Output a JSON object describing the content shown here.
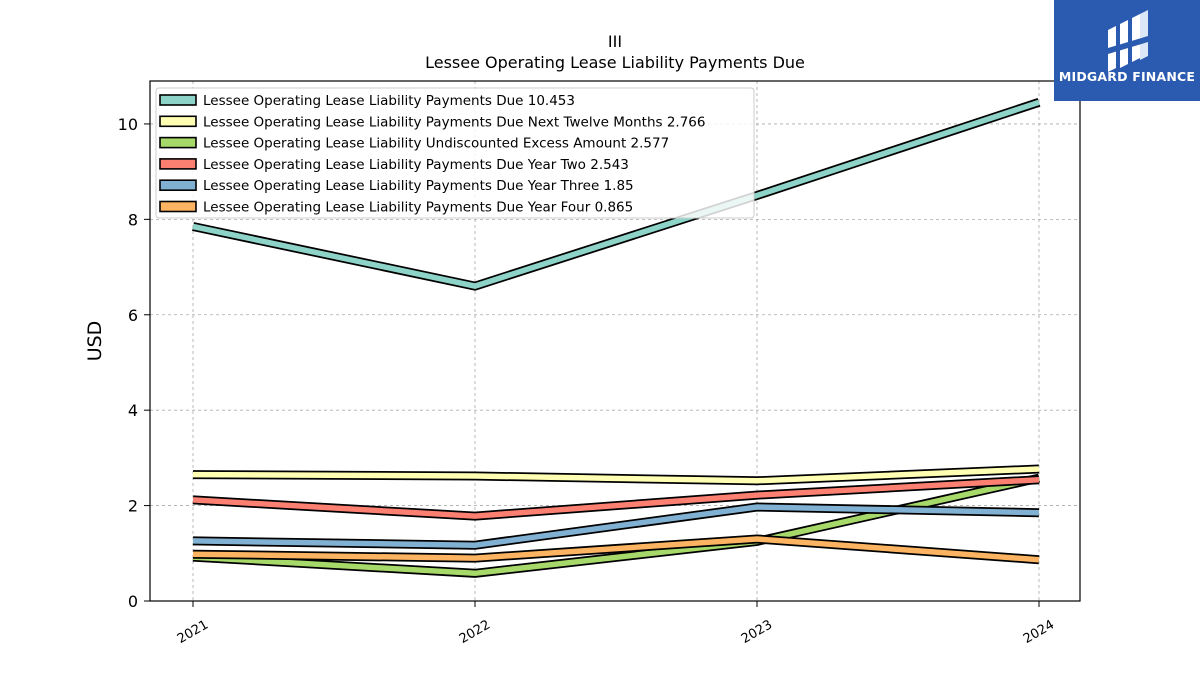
{
  "chart_data": {
    "type": "line",
    "title_line1": "III",
    "title": "Lessee Operating Lease Liability Payments Due",
    "ylabel": "USD",
    "xlabel": "",
    "categories": [
      "2021",
      "2022",
      "2023",
      "2024"
    ],
    "ylim": [
      0,
      10.9
    ],
    "yticks": [
      "0",
      "2",
      "4",
      "6",
      "8",
      "10"
    ],
    "grid": true,
    "legend_position": "top-left",
    "series": [
      {
        "name": "Lessee Operating Lease Liability Payments Due",
        "legend": "Lessee Operating Lease Liability Payments Due  10.453",
        "color": "#8dd3c7",
        "values": [
          7.85,
          6.6,
          8.5,
          10.453
        ]
      },
      {
        "name": "Lessee Operating Lease Liability Payments Due Next Twelve Months",
        "legend": "Lessee Operating Lease Liability Payments Due Next Twelve Months  2.766",
        "color": "#ffffb3",
        "values": [
          2.65,
          2.62,
          2.52,
          2.766
        ]
      },
      {
        "name": "Lessee Operating Lease Liability Undiscounted Excess Amount",
        "legend": "Lessee Operating Lease Liability Undiscounted Excess Amount  2.577",
        "color": "#a6d96a",
        "values": [
          0.92,
          0.58,
          1.25,
          2.577
        ]
      },
      {
        "name": "Lessee Operating Lease Liability Payments Due Year Two",
        "legend": "Lessee Operating Lease Liability Payments Due Year Two  2.543",
        "color": "#fb8072",
        "values": [
          2.12,
          1.78,
          2.22,
          2.543
        ]
      },
      {
        "name": "Lessee Operating Lease Liability Payments Due Year Three",
        "legend": "Lessee Operating Lease Liability Payments Due Year Three  1.85",
        "color": "#80b1d3",
        "values": [
          1.26,
          1.17,
          1.97,
          1.85
        ]
      },
      {
        "name": "Lessee Operating Lease Liability Payments Due Year Four",
        "legend": "Lessee Operating Lease Liability Payments Due Year Four  0.865",
        "color": "#fdb462",
        "values": [
          0.98,
          0.9,
          1.3,
          0.865
        ]
      }
    ]
  },
  "logo": {
    "text": "MIDGARD FINANCE",
    "background": "#2b5bb0"
  }
}
